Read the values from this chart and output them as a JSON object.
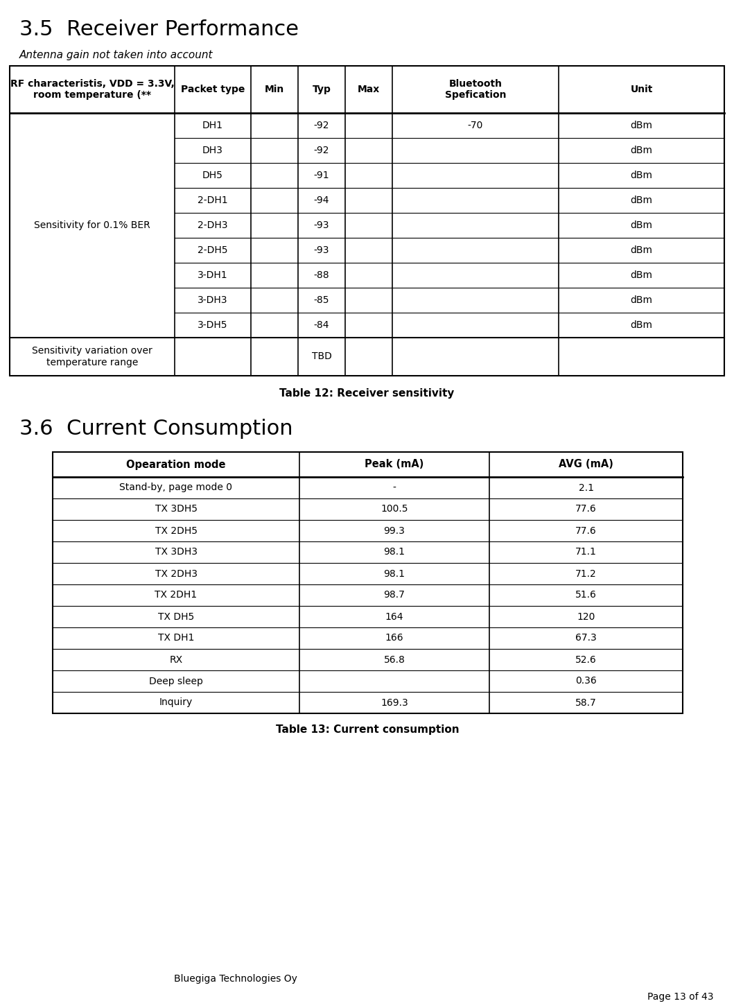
{
  "section1_title": "3.5  Receiver Performance",
  "section1_subtitle": "Antenna gain not taken into account",
  "table1_caption": "Table 12: Receiver sensitivity",
  "table1_header_col1": "RF characteristis, VDD = 3.3V,\nroom temperature (**",
  "table1_headers": [
    "Packet type",
    "Min",
    "Typ",
    "Max",
    "Bluetooth\nSpefication",
    "Unit"
  ],
  "table1_row_label": "Sensitivity for 0.1% BER",
  "table1_rows": [
    [
      "DH1",
      "",
      "-92",
      "",
      "-70",
      "dBm"
    ],
    [
      "DH3",
      "",
      "-92",
      "",
      "",
      "dBm"
    ],
    [
      "DH5",
      "",
      "-91",
      "",
      "",
      "dBm"
    ],
    [
      "2-DH1",
      "",
      "-94",
      "",
      "",
      "dBm"
    ],
    [
      "2-DH3",
      "",
      "-93",
      "",
      "",
      "dBm"
    ],
    [
      "2-DH5",
      "",
      "-93",
      "",
      "",
      "dBm"
    ],
    [
      "3-DH1",
      "",
      "-88",
      "",
      "",
      "dBm"
    ],
    [
      "3-DH3",
      "",
      "-85",
      "",
      "",
      "dBm"
    ],
    [
      "3-DH5",
      "",
      "-84",
      "",
      "",
      "dBm"
    ]
  ],
  "table1_last_row_label": "Sensitivity variation over\ntemperature range",
  "table1_last_row_data": [
    "",
    "",
    "TBD",
    "",
    "",
    ""
  ],
  "section2_title": "3.6  Current Consumption",
  "table2_caption": "Table 13: Current consumption",
  "table2_headers": [
    "Opearation mode",
    "Peak (mA)",
    "AVG (mA)"
  ],
  "table2_rows": [
    [
      "Stand-by, page mode 0",
      "-",
      "2.1"
    ],
    [
      "TX 3DH5",
      "100.5",
      "77.6"
    ],
    [
      "TX 2DH5",
      "99.3",
      "77.6"
    ],
    [
      "TX 3DH3",
      "98.1",
      "71.1"
    ],
    [
      "TX 2DH3",
      "98.1",
      "71.2"
    ],
    [
      "TX 2DH1",
      "98.7",
      "51.6"
    ],
    [
      "TX DH5",
      "164",
      "120"
    ],
    [
      "TX DH1",
      "166",
      "67.3"
    ],
    [
      "RX",
      "56.8",
      "52.6"
    ],
    [
      "Deep sleep",
      "",
      "0.36"
    ],
    [
      "Inquiry",
      "169.3",
      "58.7"
    ]
  ],
  "footer_left": "Bluegiga Technologies Oy",
  "footer_right": "Page 13 of 43",
  "bg_color": "#ffffff"
}
